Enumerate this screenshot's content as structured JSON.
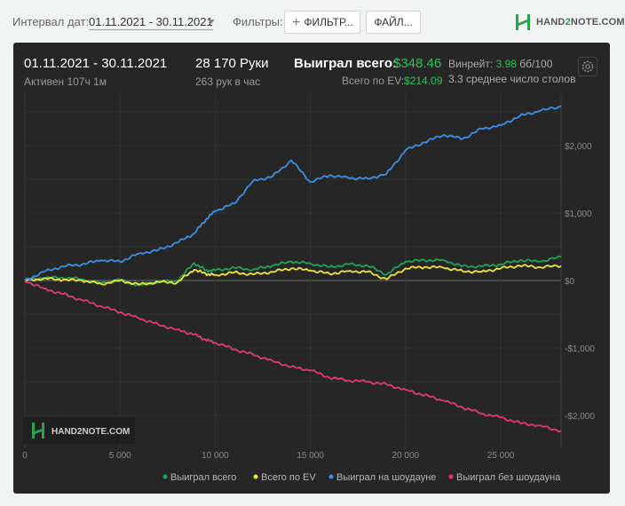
{
  "toolbar": {
    "date_interval_label": "Интервал дат:",
    "date_interval_value": "01.11.2021 - 30.11.2021",
    "filters_label": "Фильтры:",
    "filters_button": "ФИЛЬТР...",
    "file_button": "ФАЙЛ...",
    "logo_text_a": "HAND",
    "logo_text_b": "2",
    "logo_text_c": "NOTE.COM"
  },
  "summary": {
    "date_range": "01.11.2021 - 30.11.2021",
    "active_time": "Активен 107ч 1м",
    "hands": "28 170 Руки",
    "hands_per_hour": "263 рук в час",
    "won_total_label": "Выиграл всего:",
    "won_total_value": "$348.46",
    "ev_total_label": "Всего по EV:",
    "ev_total_value": "$214.09",
    "winrate_label": "Винрейт:",
    "winrate_value": "3.98",
    "winrate_unit": "бб/100",
    "avg_tables": "3.3 среднее число столов"
  },
  "watermark": "HAND2NOTE.COM",
  "colors": {
    "won_total": "#1fa356",
    "ev": "#f0e53a",
    "showdown": "#3d8fe6",
    "non_showdown": "#e03b6e",
    "accent": "#2fbf5a"
  },
  "chart_data": {
    "type": "line",
    "xlim": [
      0,
      28170
    ],
    "ylim": [
      -2200,
      2600
    ],
    "x_ticks": [
      "0",
      "5 000",
      "10 000",
      "15 000",
      "20 000",
      "25 000"
    ],
    "y_ticks": [
      "$2,000",
      "$1,000",
      "$0",
      "-$1,000",
      "-$2,000"
    ],
    "y_tick_values": [
      2000,
      1000,
      0,
      -1000,
      -2000
    ],
    "x": [
      0,
      1000,
      2000,
      3000,
      4000,
      5000,
      6000,
      7000,
      8000,
      8900,
      9500,
      10000,
      11000,
      12000,
      13000,
      14000,
      15000,
      16000,
      17000,
      18000,
      19000,
      20000,
      21000,
      22000,
      23000,
      24000,
      25000,
      26000,
      27000,
      28170
    ],
    "series": [
      {
        "name": "Выиграл всего",
        "color": "#1fa356",
        "values": [
          0,
          40,
          40,
          20,
          -40,
          10,
          -70,
          -20,
          -10,
          260,
          150,
          150,
          190,
          160,
          220,
          280,
          250,
          200,
          240,
          220,
          90,
          280,
          300,
          300,
          210,
          210,
          240,
          300,
          280,
          348
        ]
      },
      {
        "name": "Всего по EV",
        "color": "#f0e53a",
        "values": [
          0,
          30,
          10,
          0,
          -50,
          0,
          -60,
          -20,
          -30,
          160,
          100,
          80,
          120,
          90,
          130,
          180,
          150,
          100,
          140,
          130,
          20,
          180,
          200,
          190,
          140,
          130,
          180,
          220,
          200,
          214
        ]
      },
      {
        "name": "Выиграл на шоудауне",
        "color": "#3d8fe6",
        "values": [
          0,
          130,
          210,
          240,
          300,
          280,
          400,
          450,
          560,
          700,
          900,
          1030,
          1140,
          1480,
          1540,
          1780,
          1460,
          1560,
          1520,
          1510,
          1580,
          1930,
          2050,
          2160,
          2100,
          2250,
          2300,
          2440,
          2510,
          2580
        ]
      },
      {
        "name": "Выиграл без шоудауна",
        "color": "#e03b6e",
        "values": [
          0,
          -120,
          -200,
          -290,
          -380,
          -470,
          -560,
          -650,
          -730,
          -800,
          -880,
          -920,
          -1020,
          -1100,
          -1190,
          -1280,
          -1330,
          -1440,
          -1480,
          -1500,
          -1540,
          -1620,
          -1700,
          -1780,
          -1880,
          -1970,
          -2030,
          -2110,
          -2150,
          -2230
        ]
      }
    ]
  }
}
